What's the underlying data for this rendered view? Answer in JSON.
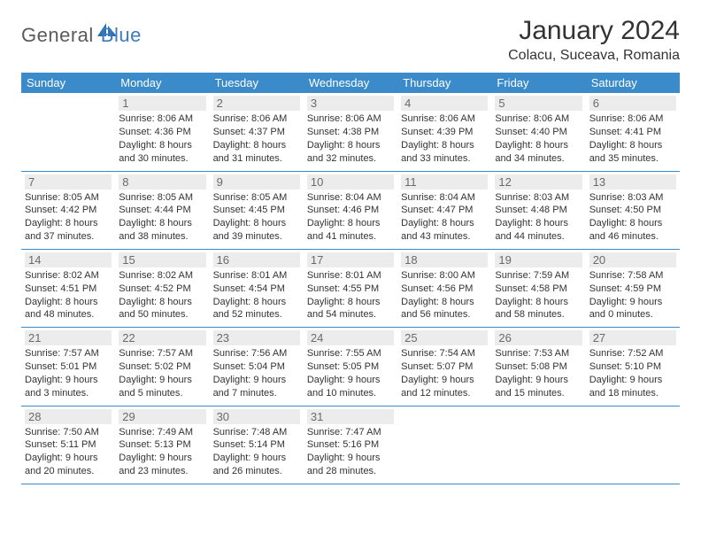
{
  "logo": {
    "text1": "General",
    "text2": "Blue"
  },
  "title": "January 2024",
  "location": "Colacu, Suceava, Romania",
  "colors": {
    "header_bg": "#3b8bca",
    "header_text": "#ffffff",
    "daynum_bg": "#ececec",
    "daynum_text": "#6a6a6a",
    "border": "#3b8bca",
    "body_text": "#333333",
    "logo_gray": "#5a5a5a",
    "logo_blue": "#3b7bbf"
  },
  "dayHeaders": [
    "Sunday",
    "Monday",
    "Tuesday",
    "Wednesday",
    "Thursday",
    "Friday",
    "Saturday"
  ],
  "weeks": [
    [
      {
        "n": "",
        "sr": "",
        "ss": "",
        "d1": "",
        "d2": ""
      },
      {
        "n": "1",
        "sr": "Sunrise: 8:06 AM",
        "ss": "Sunset: 4:36 PM",
        "d1": "Daylight: 8 hours",
        "d2": "and 30 minutes."
      },
      {
        "n": "2",
        "sr": "Sunrise: 8:06 AM",
        "ss": "Sunset: 4:37 PM",
        "d1": "Daylight: 8 hours",
        "d2": "and 31 minutes."
      },
      {
        "n": "3",
        "sr": "Sunrise: 8:06 AM",
        "ss": "Sunset: 4:38 PM",
        "d1": "Daylight: 8 hours",
        "d2": "and 32 minutes."
      },
      {
        "n": "4",
        "sr": "Sunrise: 8:06 AM",
        "ss": "Sunset: 4:39 PM",
        "d1": "Daylight: 8 hours",
        "d2": "and 33 minutes."
      },
      {
        "n": "5",
        "sr": "Sunrise: 8:06 AM",
        "ss": "Sunset: 4:40 PM",
        "d1": "Daylight: 8 hours",
        "d2": "and 34 minutes."
      },
      {
        "n": "6",
        "sr": "Sunrise: 8:06 AM",
        "ss": "Sunset: 4:41 PM",
        "d1": "Daylight: 8 hours",
        "d2": "and 35 minutes."
      }
    ],
    [
      {
        "n": "7",
        "sr": "Sunrise: 8:05 AM",
        "ss": "Sunset: 4:42 PM",
        "d1": "Daylight: 8 hours",
        "d2": "and 37 minutes."
      },
      {
        "n": "8",
        "sr": "Sunrise: 8:05 AM",
        "ss": "Sunset: 4:44 PM",
        "d1": "Daylight: 8 hours",
        "d2": "and 38 minutes."
      },
      {
        "n": "9",
        "sr": "Sunrise: 8:05 AM",
        "ss": "Sunset: 4:45 PM",
        "d1": "Daylight: 8 hours",
        "d2": "and 39 minutes."
      },
      {
        "n": "10",
        "sr": "Sunrise: 8:04 AM",
        "ss": "Sunset: 4:46 PM",
        "d1": "Daylight: 8 hours",
        "d2": "and 41 minutes."
      },
      {
        "n": "11",
        "sr": "Sunrise: 8:04 AM",
        "ss": "Sunset: 4:47 PM",
        "d1": "Daylight: 8 hours",
        "d2": "and 43 minutes."
      },
      {
        "n": "12",
        "sr": "Sunrise: 8:03 AM",
        "ss": "Sunset: 4:48 PM",
        "d1": "Daylight: 8 hours",
        "d2": "and 44 minutes."
      },
      {
        "n": "13",
        "sr": "Sunrise: 8:03 AM",
        "ss": "Sunset: 4:50 PM",
        "d1": "Daylight: 8 hours",
        "d2": "and 46 minutes."
      }
    ],
    [
      {
        "n": "14",
        "sr": "Sunrise: 8:02 AM",
        "ss": "Sunset: 4:51 PM",
        "d1": "Daylight: 8 hours",
        "d2": "and 48 minutes."
      },
      {
        "n": "15",
        "sr": "Sunrise: 8:02 AM",
        "ss": "Sunset: 4:52 PM",
        "d1": "Daylight: 8 hours",
        "d2": "and 50 minutes."
      },
      {
        "n": "16",
        "sr": "Sunrise: 8:01 AM",
        "ss": "Sunset: 4:54 PM",
        "d1": "Daylight: 8 hours",
        "d2": "and 52 minutes."
      },
      {
        "n": "17",
        "sr": "Sunrise: 8:01 AM",
        "ss": "Sunset: 4:55 PM",
        "d1": "Daylight: 8 hours",
        "d2": "and 54 minutes."
      },
      {
        "n": "18",
        "sr": "Sunrise: 8:00 AM",
        "ss": "Sunset: 4:56 PM",
        "d1": "Daylight: 8 hours",
        "d2": "and 56 minutes."
      },
      {
        "n": "19",
        "sr": "Sunrise: 7:59 AM",
        "ss": "Sunset: 4:58 PM",
        "d1": "Daylight: 8 hours",
        "d2": "and 58 minutes."
      },
      {
        "n": "20",
        "sr": "Sunrise: 7:58 AM",
        "ss": "Sunset: 4:59 PM",
        "d1": "Daylight: 9 hours",
        "d2": "and 0 minutes."
      }
    ],
    [
      {
        "n": "21",
        "sr": "Sunrise: 7:57 AM",
        "ss": "Sunset: 5:01 PM",
        "d1": "Daylight: 9 hours",
        "d2": "and 3 minutes."
      },
      {
        "n": "22",
        "sr": "Sunrise: 7:57 AM",
        "ss": "Sunset: 5:02 PM",
        "d1": "Daylight: 9 hours",
        "d2": "and 5 minutes."
      },
      {
        "n": "23",
        "sr": "Sunrise: 7:56 AM",
        "ss": "Sunset: 5:04 PM",
        "d1": "Daylight: 9 hours",
        "d2": "and 7 minutes."
      },
      {
        "n": "24",
        "sr": "Sunrise: 7:55 AM",
        "ss": "Sunset: 5:05 PM",
        "d1": "Daylight: 9 hours",
        "d2": "and 10 minutes."
      },
      {
        "n": "25",
        "sr": "Sunrise: 7:54 AM",
        "ss": "Sunset: 5:07 PM",
        "d1": "Daylight: 9 hours",
        "d2": "and 12 minutes."
      },
      {
        "n": "26",
        "sr": "Sunrise: 7:53 AM",
        "ss": "Sunset: 5:08 PM",
        "d1": "Daylight: 9 hours",
        "d2": "and 15 minutes."
      },
      {
        "n": "27",
        "sr": "Sunrise: 7:52 AM",
        "ss": "Sunset: 5:10 PM",
        "d1": "Daylight: 9 hours",
        "d2": "and 18 minutes."
      }
    ],
    [
      {
        "n": "28",
        "sr": "Sunrise: 7:50 AM",
        "ss": "Sunset: 5:11 PM",
        "d1": "Daylight: 9 hours",
        "d2": "and 20 minutes."
      },
      {
        "n": "29",
        "sr": "Sunrise: 7:49 AM",
        "ss": "Sunset: 5:13 PM",
        "d1": "Daylight: 9 hours",
        "d2": "and 23 minutes."
      },
      {
        "n": "30",
        "sr": "Sunrise: 7:48 AM",
        "ss": "Sunset: 5:14 PM",
        "d1": "Daylight: 9 hours",
        "d2": "and 26 minutes."
      },
      {
        "n": "31",
        "sr": "Sunrise: 7:47 AM",
        "ss": "Sunset: 5:16 PM",
        "d1": "Daylight: 9 hours",
        "d2": "and 28 minutes."
      },
      {
        "n": "",
        "sr": "",
        "ss": "",
        "d1": "",
        "d2": ""
      },
      {
        "n": "",
        "sr": "",
        "ss": "",
        "d1": "",
        "d2": ""
      },
      {
        "n": "",
        "sr": "",
        "ss": "",
        "d1": "",
        "d2": ""
      }
    ]
  ]
}
